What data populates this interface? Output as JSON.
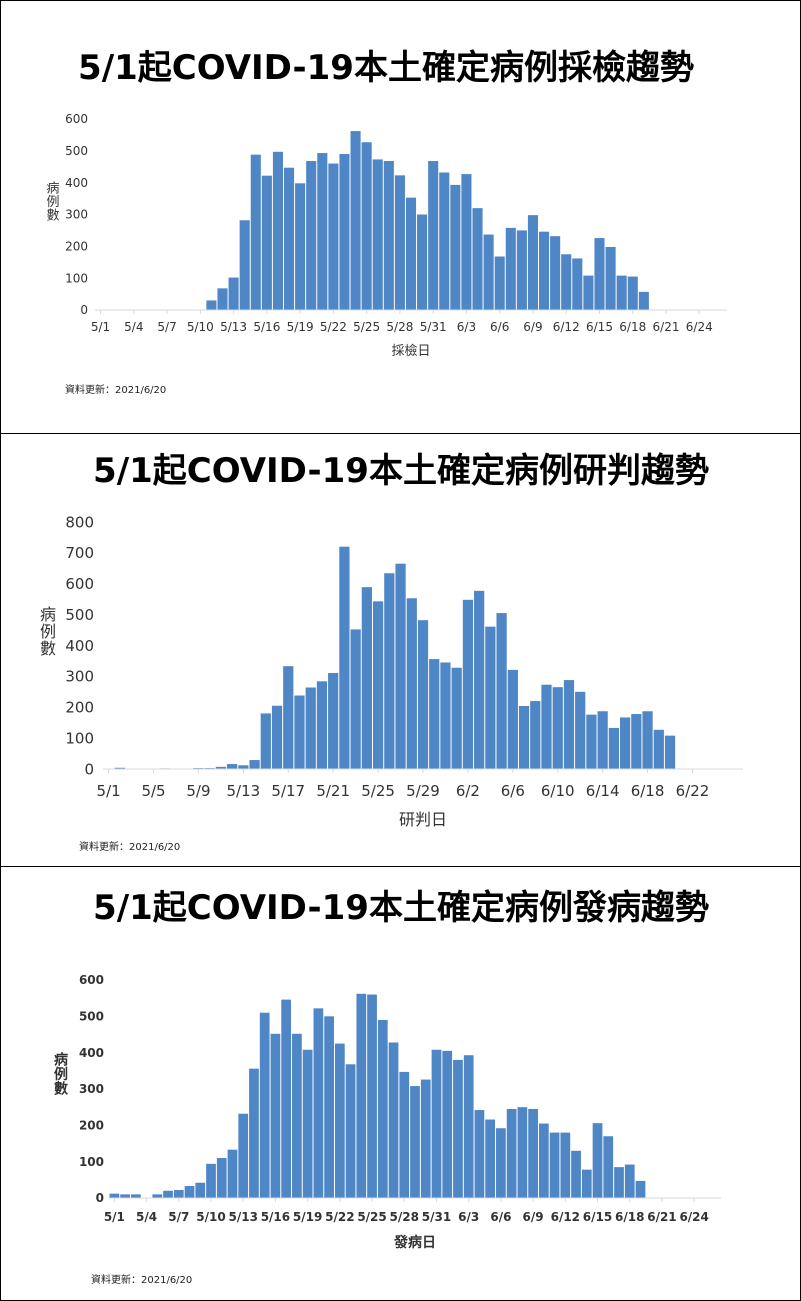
{
  "chart_data": [
    {
      "type": "bar",
      "title": "5/1起COVID-19本土確定病例採檢趨勢",
      "xlabel": "採檢日",
      "ylabel": "病例數",
      "ylim": [
        0,
        600
      ],
      "yticks": [
        "0",
        "100",
        "200",
        "300",
        "400",
        "500",
        "600"
      ],
      "xticks": [
        "5/1",
        "5/4",
        "5/7",
        "5/10",
        "5/13",
        "5/16",
        "5/19",
        "5/22",
        "5/25",
        "5/28",
        "5/31",
        "6/3",
        "6/6",
        "6/9",
        "6/12",
        "6/15",
        "6/18",
        "6/21",
        "6/24"
      ],
      "start_date": "5/1",
      "values": [
        0,
        0,
        0,
        0,
        0,
        0,
        0,
        0,
        0,
        0,
        30,
        68,
        102,
        282,
        488,
        422,
        497,
        447,
        398,
        468,
        493,
        460,
        490,
        562,
        527,
        473,
        468,
        423,
        353,
        300,
        468,
        432,
        393,
        427,
        320,
        237,
        168,
        258,
        250,
        298,
        246,
        232,
        175,
        162,
        108,
        226,
        198,
        108,
        105,
        57,
        0,
        0,
        0,
        0,
        0,
        0,
        0
      ],
      "note": "資料更新：2021/6/20"
    },
    {
      "type": "bar",
      "title": "5/1起COVID-19本土確定病例研判趨勢",
      "xlabel": "研判日",
      "ylabel": "病例數",
      "ylim": [
        0,
        800
      ],
      "yticks": [
        "0",
        "100",
        "200",
        "300",
        "400",
        "500",
        "600",
        "700",
        "800"
      ],
      "xticks": [
        "5/1",
        "5/5",
        "5/9",
        "5/13",
        "5/17",
        "5/21",
        "5/25",
        "5/29",
        "6/2",
        "6/6",
        "6/10",
        "6/14",
        "6/18",
        "6/22"
      ],
      "start_date": "5/1",
      "values": [
        0,
        4,
        1,
        0,
        0,
        2,
        1,
        1,
        3,
        3,
        7,
        16,
        12,
        29,
        180,
        205,
        333,
        238,
        264,
        284,
        311,
        720,
        452,
        589,
        543,
        634,
        665,
        553,
        482,
        356,
        345,
        328,
        548,
        577,
        461,
        505,
        321,
        204,
        220,
        273,
        265,
        288,
        250,
        176,
        187,
        133,
        167,
        178,
        187,
        127,
        108,
        0,
        0,
        0,
        0,
        0,
        0
      ],
      "note": "資料更新：2021/6/20"
    },
    {
      "type": "bar",
      "title": "5/1起COVID-19本土確定病例發病趨勢",
      "xlabel": "發病日",
      "ylabel": "病例數",
      "ylim": [
        0,
        600
      ],
      "yticks": [
        "0",
        "100",
        "200",
        "300",
        "400",
        "500",
        "600"
      ],
      "xticks": [
        "5/1",
        "5/4",
        "5/7",
        "5/10",
        "5/13",
        "5/16",
        "5/19",
        "5/22",
        "5/25",
        "5/28",
        "5/31",
        "6/3",
        "6/6",
        "6/9",
        "6/12",
        "6/15",
        "6/18",
        "6/21",
        "6/24"
      ],
      "start_date": "5/1",
      "values": [
        12,
        10,
        10,
        0,
        10,
        20,
        22,
        33,
        42,
        94,
        110,
        133,
        232,
        356,
        510,
        452,
        546,
        452,
        408,
        522,
        500,
        425,
        368,
        562,
        560,
        490,
        428,
        347,
        308,
        326,
        408,
        405,
        380,
        393,
        242,
        216,
        192,
        245,
        250,
        245,
        205,
        180,
        180,
        130,
        78,
        206,
        170,
        85,
        92,
        47,
        0,
        0,
        0,
        0,
        0,
        0,
        0
      ],
      "note": "資料更新：2021/6/20"
    }
  ]
}
